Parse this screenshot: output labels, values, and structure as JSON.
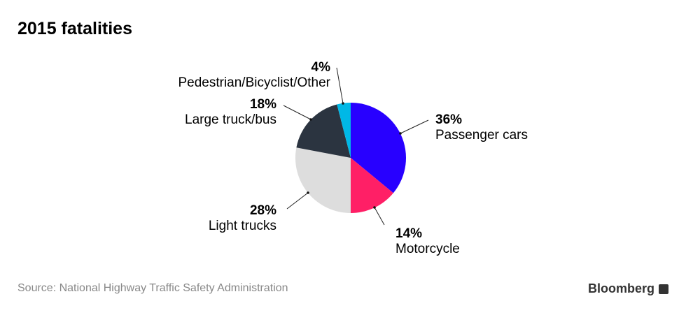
{
  "chart_data": {
    "type": "pie",
    "title": "2015 fatalities",
    "slices": [
      {
        "label": "Passenger cars",
        "value": 36,
        "pct_label": "36%",
        "color": "#2800ff"
      },
      {
        "label": "Motorcycle",
        "value": 14,
        "pct_label": "14%",
        "color": "#ff1f66"
      },
      {
        "label": "Light trucks",
        "value": 28,
        "pct_label": "28%",
        "color": "#dddddd"
      },
      {
        "label": "Large truck/bus",
        "value": 18,
        "pct_label": "18%",
        "color": "#2b3440"
      },
      {
        "label": "Pedestrian/Bicyclist/Other",
        "value": 4,
        "pct_label": "4%",
        "color": "#00b8e6"
      }
    ],
    "start": "12 o'clock, clockwise"
  },
  "footer": {
    "source": "Source: National Highway Traffic Safety Administration",
    "brand": "Bloomberg"
  }
}
